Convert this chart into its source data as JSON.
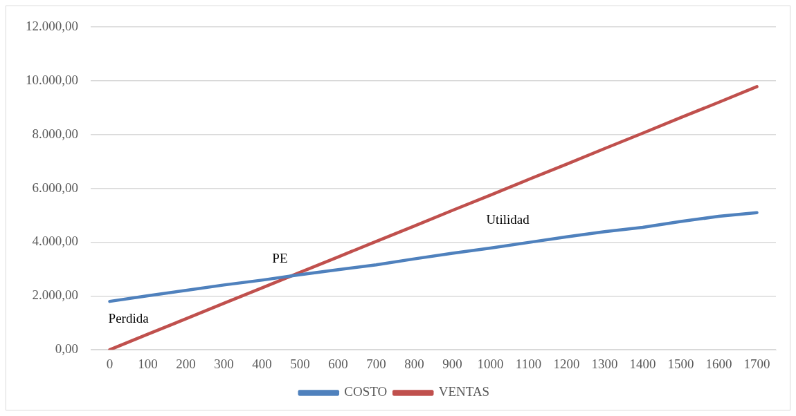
{
  "chart_data": {
    "type": "line",
    "categories": [
      "0",
      "100",
      "200",
      "300",
      "400",
      "500",
      "600",
      "700",
      "800",
      "900",
      "1000",
      "1100",
      "1200",
      "1300",
      "1400",
      "1500",
      "1600",
      "1700"
    ],
    "series": [
      {
        "name": "COSTO",
        "color": "#4f81bd",
        "values": [
          1800,
          2010,
          2210,
          2410,
          2590,
          2790,
          2980,
          3160,
          3380,
          3590,
          3780,
          3990,
          4200,
          4390,
          4550,
          4770,
          4960,
          5100
        ]
      },
      {
        "name": "VENTAS",
        "color": "#c0504d",
        "values": [
          0,
          580,
          1150,
          1730,
          2300,
          2880,
          3450,
          4030,
          4600,
          5180,
          5750,
          6330,
          6900,
          7480,
          8050,
          8630,
          9200,
          9780
        ]
      }
    ],
    "ylim": [
      0,
      12000
    ],
    "yticks": [
      {
        "value": 0,
        "label": "0,00"
      },
      {
        "value": 2000,
        "label": "2.000,00"
      },
      {
        "value": 4000,
        "label": "4.000,00"
      },
      {
        "value": 6000,
        "label": "6.000,00"
      },
      {
        "value": 8000,
        "label": "8.000,00"
      },
      {
        "value": 10000,
        "label": "10.000,00"
      },
      {
        "value": 12000,
        "label": "12.000,00"
      }
    ],
    "grid": "y",
    "legend": "bottom",
    "marker": "none",
    "line_style": "solid",
    "annotations": [
      "PE",
      "Perdida",
      "Utilidad"
    ]
  }
}
